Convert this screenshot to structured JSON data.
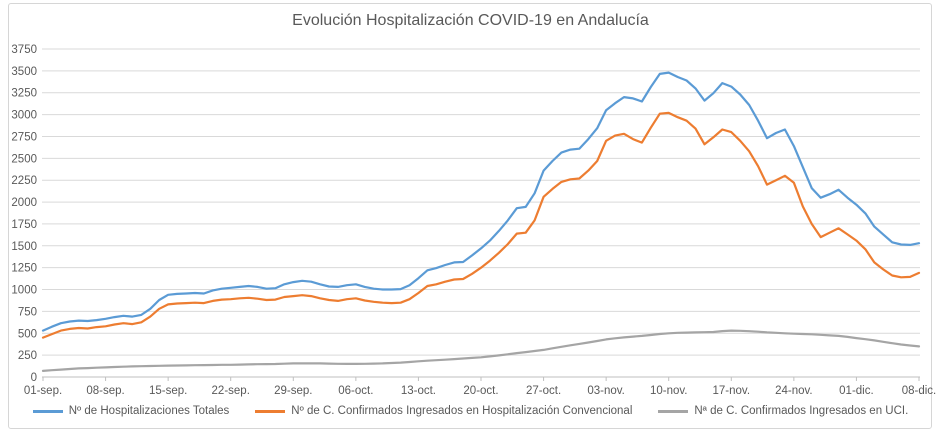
{
  "frame": {
    "background": "#ffffff",
    "border_color": "#d6d6d6"
  },
  "chart_data": {
    "type": "line",
    "title": "Evolución Hospitalización COVID-19 en Andalucía",
    "xlabel": "",
    "ylabel": "",
    "ylim": [
      0,
      3750
    ],
    "grid": true,
    "legend_position": "bottom",
    "grid_color": "#d9d9d9",
    "axis_color": "#bfbfbf",
    "tick_label_color": "#595959",
    "x_tick_interval_days": 7,
    "x_tick_labels": [
      "01-sep.",
      "08-sep.",
      "15-sep.",
      "22-sep.",
      "29-sep.",
      "06-oct.",
      "13-oct.",
      "20-oct.",
      "27-oct.",
      "03-nov.",
      "10-nov.",
      "17-nov.",
      "24-nov.",
      "01-dic.",
      "08-dic."
    ],
    "y_tick_values": [
      0,
      250,
      500,
      750,
      1000,
      1250,
      1500,
      1750,
      2000,
      2250,
      2500,
      2750,
      3000,
      3250,
      3500,
      3750
    ],
    "series": [
      {
        "name": "Nº de Hospitalizaciones Totales",
        "color": "#5B9BD5",
        "values": [
          530,
          575,
          615,
          635,
          645,
          640,
          650,
          665,
          685,
          700,
          690,
          710,
          780,
          880,
          940,
          950,
          955,
          960,
          955,
          990,
          1010,
          1020,
          1030,
          1040,
          1030,
          1010,
          1015,
          1060,
          1085,
          1100,
          1090,
          1060,
          1035,
          1030,
          1050,
          1060,
          1030,
          1010,
          1000,
          1000,
          1005,
          1050,
          1130,
          1220,
          1245,
          1280,
          1310,
          1315,
          1390,
          1470,
          1560,
          1670,
          1790,
          1930,
          1945,
          2100,
          2360,
          2470,
          2565,
          2600,
          2610,
          2720,
          2845,
          3050,
          3130,
          3200,
          3185,
          3150,
          3315,
          3465,
          3480,
          3430,
          3390,
          3300,
          3160,
          3245,
          3360,
          3320,
          3230,
          3110,
          2930,
          2730,
          2790,
          2830,
          2640,
          2400,
          2160,
          2050,
          2090,
          2140,
          2050,
          1970,
          1870,
          1720,
          1630,
          1540,
          1515,
          1510,
          1530
        ]
      },
      {
        "name": "Nº de C. Confirmados Ingresados en Hospitalización Convencional",
        "color": "#ED7D31",
        "values": [
          450,
          490,
          530,
          550,
          560,
          555,
          570,
          580,
          600,
          615,
          605,
          625,
          690,
          780,
          830,
          840,
          845,
          850,
          845,
          870,
          885,
          890,
          900,
          905,
          895,
          880,
          885,
          915,
          925,
          935,
          925,
          900,
          880,
          870,
          890,
          900,
          875,
          860,
          850,
          845,
          850,
          890,
          960,
          1040,
          1060,
          1090,
          1115,
          1120,
          1180,
          1250,
          1330,
          1420,
          1520,
          1640,
          1650,
          1790,
          2060,
          2150,
          2230,
          2260,
          2270,
          2360,
          2470,
          2700,
          2760,
          2780,
          2720,
          2680,
          2850,
          3010,
          3020,
          2970,
          2930,
          2840,
          2660,
          2740,
          2830,
          2800,
          2700,
          2580,
          2410,
          2200,
          2250,
          2300,
          2220,
          1950,
          1750,
          1600,
          1650,
          1700,
          1630,
          1560,
          1460,
          1310,
          1230,
          1160,
          1140,
          1145,
          1190
        ]
      },
      {
        "name": "Nª de C. Confirmados Ingresados en UCI.",
        "color": "#A5A5A5",
        "values": [
          70,
          78,
          85,
          92,
          98,
          102,
          106,
          110,
          114,
          118,
          121,
          124,
          126,
          128,
          130,
          132,
          133,
          135,
          136,
          137,
          139,
          140,
          142,
          144,
          146,
          147,
          149,
          152,
          155,
          156,
          157,
          155,
          153,
          151,
          150,
          150,
          151,
          153,
          156,
          160,
          165,
          172,
          180,
          186,
          192,
          198,
          205,
          211,
          218,
          225,
          235,
          247,
          260,
          273,
          285,
          297,
          310,
          328,
          345,
          362,
          378,
          395,
          412,
          430,
          442,
          453,
          462,
          470,
          480,
          492,
          500,
          505,
          508,
          510,
          512,
          515,
          525,
          530,
          528,
          524,
          518,
          510,
          505,
          500,
          495,
          492,
          488,
          482,
          476,
          470,
          458,
          445,
          432,
          418,
          402,
          386,
          372,
          360,
          350
        ]
      }
    ]
  }
}
